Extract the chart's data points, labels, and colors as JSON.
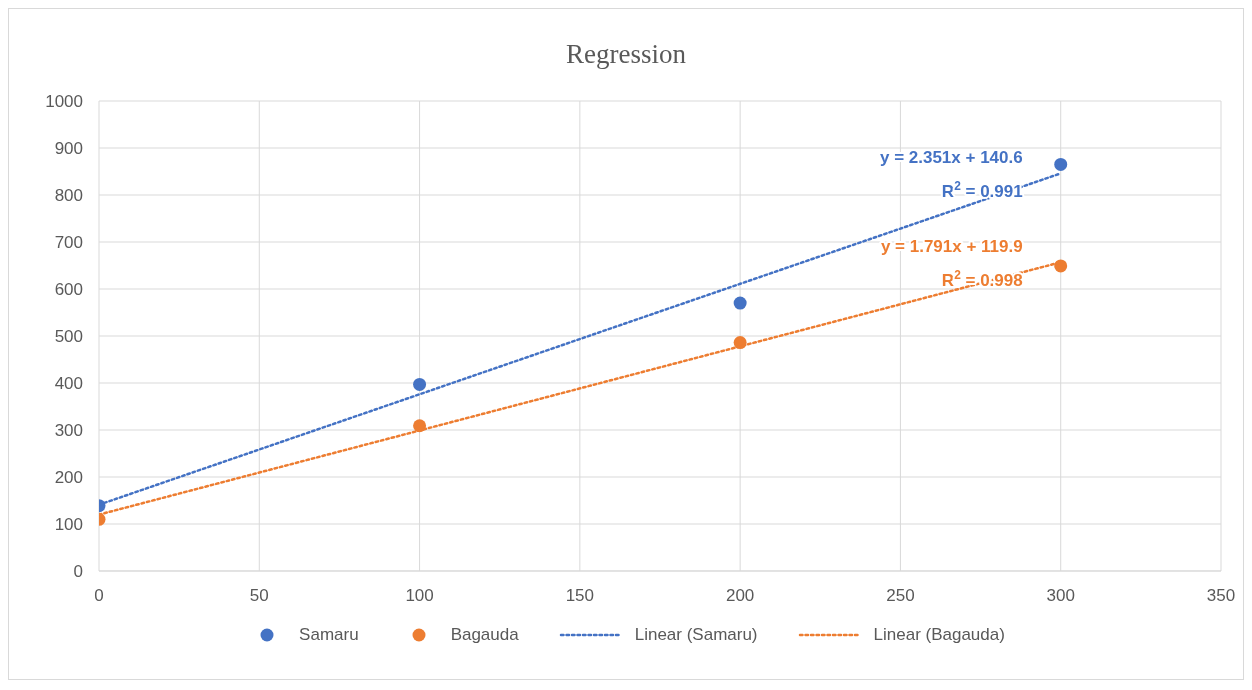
{
  "chart_data": {
    "type": "scatter",
    "title": "Regression",
    "xlim": [
      0,
      350
    ],
    "xticks": [
      0,
      50,
      100,
      150,
      200,
      250,
      300,
      350
    ],
    "ylim": [
      0,
      1000
    ],
    "yticks": [
      0,
      100,
      200,
      300,
      400,
      500,
      600,
      700,
      800,
      900,
      1000
    ],
    "grid": true,
    "legend": "bottom",
    "marker": "circle",
    "series": [
      {
        "name": "Samaru",
        "color": "#4472c4",
        "x": [
          0,
          100,
          200,
          300
        ],
        "values": [
          139,
          397,
          570,
          865
        ]
      },
      {
        "name": "Bagauda",
        "color": "#ed7d31",
        "x": [
          0,
          100,
          200,
          300
        ],
        "values": [
          110,
          309,
          486,
          649
        ]
      },
      {
        "name": "Linear (Samaru)",
        "type": "line",
        "line_style": "dotted",
        "marker": "none",
        "color": "#4472c4",
        "x": [
          0,
          300
        ],
        "values": [
          141,
          846
        ]
      },
      {
        "name": "Linear (Bagauda)",
        "type": "line",
        "line_style": "dotted",
        "marker": "none",
        "color": "#ed7d31",
        "x": [
          0,
          300
        ],
        "values": [
          120,
          657
        ]
      }
    ],
    "annotations": [
      "y = 2.351x + 140.6",
      "R$^{2}$ = 0.991",
      "y = 1.791x + 119.9",
      "R$^{2}$ = 0.998"
    ]
  }
}
